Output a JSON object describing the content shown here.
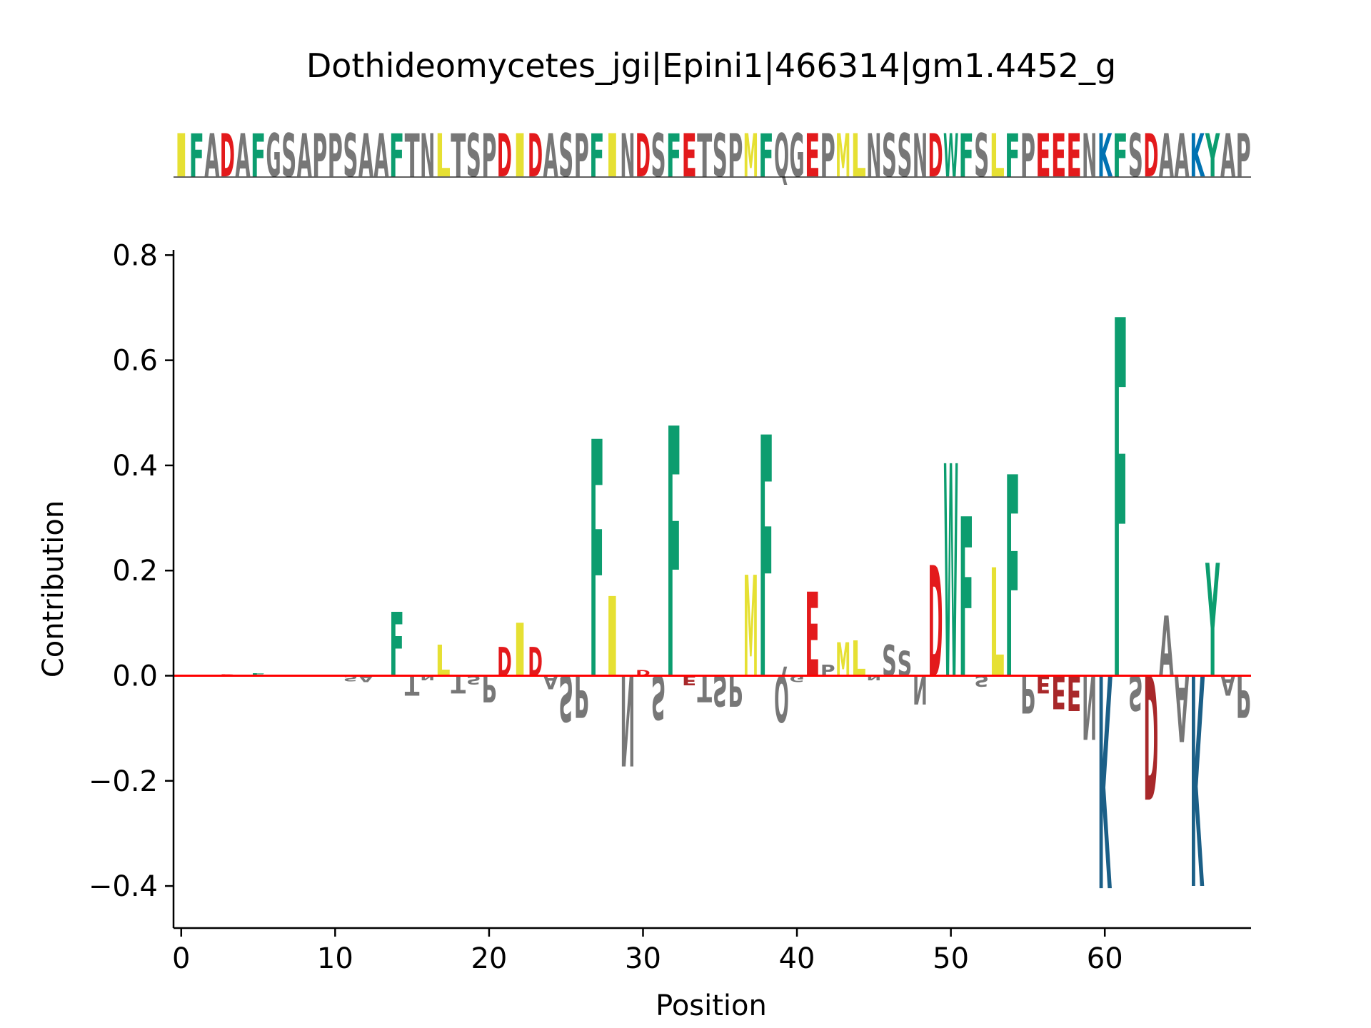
{
  "title": "Dothideomycetes_jgi|Epini1|466314|gm1.4452_g",
  "sequence": "IFADAFGSAPPSAAFTNLTSPDIDASPFINDSFETSPMFQGEPMLNSSNDWFSLFPEEENKFSDAAKYAP",
  "colors": {
    "hydrophobic_yellow": "#e6e033",
    "aromatic_green": "#0c9d6f",
    "acidic_red": "#e31a1c",
    "acidic_darkred": "#a8282a",
    "basic_blue": "#0072b2",
    "basic_darkblue": "#1b5f87",
    "neutral_gray": "#777777",
    "baseline_red": "#ff0000"
  },
  "chart_data": {
    "type": "bar",
    "title": "Dothideomycetes_jgi|Epini1|466314|gm1.4452_g",
    "xlabel": "Position",
    "ylabel": "Contribution",
    "xlim": [
      -0.5,
      69.5
    ],
    "ylim": [
      -0.48,
      0.81
    ],
    "xticks": [
      0,
      10,
      20,
      30,
      40,
      50,
      60
    ],
    "yticks": [
      -0.4,
      -0.2,
      0.0,
      0.2,
      0.4,
      0.6,
      0.8
    ],
    "ytick_labels": [
      "−0.4",
      "−0.2",
      "0.0",
      "0.2",
      "0.4",
      "0.6",
      "0.8"
    ],
    "grid": false,
    "contributions": [
      {
        "pos": 3,
        "letter": "D",
        "value": 0.003
      },
      {
        "pos": 5,
        "letter": "F",
        "value": 0.005
      },
      {
        "pos": 11,
        "letter": "S",
        "value": -0.012
      },
      {
        "pos": 12,
        "letter": "A",
        "value": -0.015
      },
      {
        "pos": 14,
        "letter": "F",
        "value": 0.145
      },
      {
        "pos": 15,
        "letter": "T",
        "value": -0.045
      },
      {
        "pos": 16,
        "letter": "N",
        "value": -0.01
      },
      {
        "pos": 17,
        "letter": "L",
        "value": 0.07
      },
      {
        "pos": 18,
        "letter": "T",
        "value": -0.04
      },
      {
        "pos": 19,
        "letter": "S",
        "value": -0.02
      },
      {
        "pos": 20,
        "letter": "P",
        "value": -0.06
      },
      {
        "pos": 21,
        "letter": "D",
        "value": 0.065
      },
      {
        "pos": 22,
        "letter": "I",
        "value": 0.12
      },
      {
        "pos": 23,
        "letter": "D",
        "value": 0.065
      },
      {
        "pos": 24,
        "letter": "A",
        "value": -0.03
      },
      {
        "pos": 25,
        "letter": "S",
        "value": -0.105
      },
      {
        "pos": 26,
        "letter": "P",
        "value": -0.095
      },
      {
        "pos": 27,
        "letter": "F",
        "value": 0.535
      },
      {
        "pos": 28,
        "letter": "I",
        "value": 0.18
      },
      {
        "pos": 29,
        "letter": "N",
        "value": -0.205
      },
      {
        "pos": 30,
        "letter": "D",
        "value": 0.012
      },
      {
        "pos": 31,
        "letter": "S",
        "value": -0.1
      },
      {
        "pos": 32,
        "letter": "F",
        "value": 0.565
      },
      {
        "pos": 33,
        "letter": "E",
        "value": -0.022
      },
      {
        "pos": 34,
        "letter": "T",
        "value": -0.06
      },
      {
        "pos": 35,
        "letter": "S",
        "value": -0.07
      },
      {
        "pos": 36,
        "letter": "P",
        "value": -0.07
      },
      {
        "pos": 37,
        "letter": "M",
        "value": 0.228
      },
      {
        "pos": 38,
        "letter": "F",
        "value": 0.545
      },
      {
        "pos": 39,
        "letter": "Q",
        "value": -0.105
      },
      {
        "pos": 40,
        "letter": "G",
        "value": -0.015
      },
      {
        "pos": 41,
        "letter": "E",
        "value": 0.19
      },
      {
        "pos": 42,
        "letter": "P",
        "value": 0.025
      },
      {
        "pos": 43,
        "letter": "M",
        "value": 0.075
      },
      {
        "pos": 44,
        "letter": "L",
        "value": 0.08
      },
      {
        "pos": 45,
        "letter": "N",
        "value": -0.01
      },
      {
        "pos": 46,
        "letter": "S",
        "value": 0.07
      },
      {
        "pos": 47,
        "letter": "S",
        "value": 0.055
      },
      {
        "pos": 48,
        "letter": "N",
        "value": -0.065
      },
      {
        "pos": 49,
        "letter": "D",
        "value": 0.25
      },
      {
        "pos": 50,
        "letter": "W",
        "value": 0.48
      },
      {
        "pos": 51,
        "letter": "F",
        "value": 0.36
      },
      {
        "pos": 52,
        "letter": "S",
        "value": -0.025
      },
      {
        "pos": 53,
        "letter": "L",
        "value": 0.245
      },
      {
        "pos": 54,
        "letter": "F",
        "value": 0.455
      },
      {
        "pos": 55,
        "letter": "P",
        "value": -0.085
      },
      {
        "pos": 56,
        "letter": "E",
        "value": -0.04
      },
      {
        "pos": 57,
        "letter": "E",
        "value": -0.075
      },
      {
        "pos": 58,
        "letter": "E",
        "value": -0.08
      },
      {
        "pos": 59,
        "letter": "N",
        "value": -0.145
      },
      {
        "pos": 60,
        "letter": "K",
        "value": -0.48
      },
      {
        "pos": 61,
        "letter": "F",
        "value": 0.81
      },
      {
        "pos": 62,
        "letter": "S",
        "value": -0.08
      },
      {
        "pos": 63,
        "letter": "D",
        "value": -0.28
      },
      {
        "pos": 64,
        "letter": "A",
        "value": 0.135
      },
      {
        "pos": 65,
        "letter": "A",
        "value": -0.15
      },
      {
        "pos": 66,
        "letter": "K",
        "value": -0.475
      },
      {
        "pos": 67,
        "letter": "Y",
        "value": 0.255
      },
      {
        "pos": 68,
        "letter": "A",
        "value": -0.045
      },
      {
        "pos": 69,
        "letter": "P",
        "value": -0.095
      }
    ]
  }
}
